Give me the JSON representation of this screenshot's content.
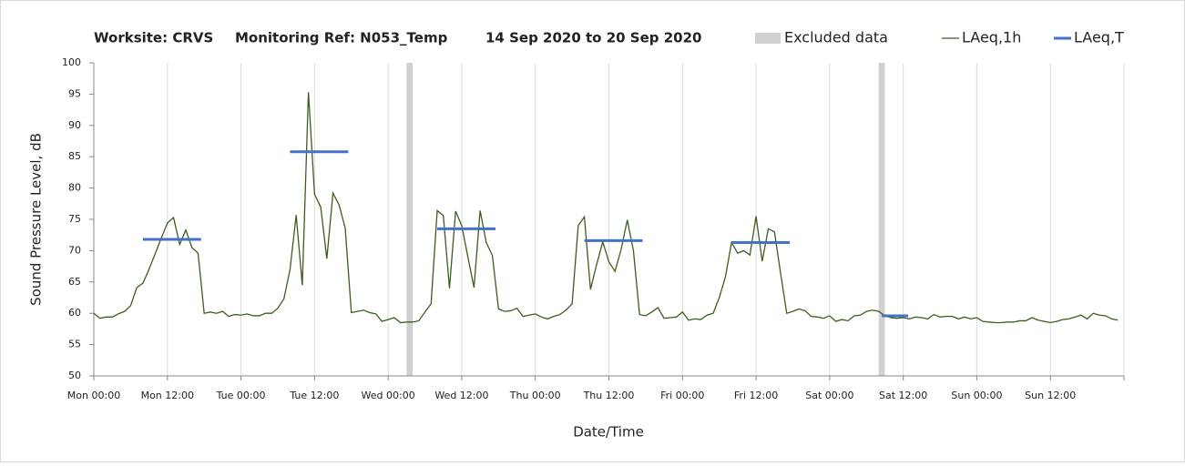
{
  "chart_data": {
    "type": "line",
    "title_parts": [
      "Worksite: CRVS",
      "Monitoring Ref: N053_Temp",
      "14 Sep 2020 to 20 Sep 2020"
    ],
    "y_label": "Sound Pressure Level, dB",
    "x_label": "Date/Time",
    "xlim": [
      0,
      168
    ],
    "xticks": [
      {
        "value": 0,
        "label": "Mon 00:00"
      },
      {
        "value": 12,
        "label": "Mon 12:00"
      },
      {
        "value": 24,
        "label": "Tue 00:00"
      },
      {
        "value": 36,
        "label": "Tue 12:00"
      },
      {
        "value": 48,
        "label": "Wed 00:00"
      },
      {
        "value": 60,
        "label": "Wed 12:00"
      },
      {
        "value": 72,
        "label": "Thu 00:00"
      },
      {
        "value": 84,
        "label": "Thu 12:00"
      },
      {
        "value": 96,
        "label": "Fri 00:00"
      },
      {
        "value": 108,
        "label": "Fri 12:00"
      },
      {
        "value": 120,
        "label": "Sat 00:00"
      },
      {
        "value": 132,
        "label": "Sat 12:00"
      },
      {
        "value": 144,
        "label": "Sun 00:00"
      },
      {
        "value": 156,
        "label": "Sun 12:00"
      },
      {
        "value": 168,
        "label": null
      }
    ],
    "ylim": [
      50,
      100
    ],
    "yticks": [
      50,
      55,
      60,
      65,
      70,
      75,
      80,
      85,
      90,
      95,
      100
    ],
    "grid": true,
    "excluded": {
      "name": "Excluded data",
      "color": "#d0d0d0",
      "ranges": [
        [
          51,
          52
        ],
        [
          128,
          129
        ]
      ]
    },
    "x": [
      0,
      1,
      2,
      3,
      4,
      5,
      6,
      7,
      8,
      9,
      10,
      11,
      12,
      13,
      14,
      15,
      16,
      17,
      18,
      19,
      20,
      21,
      22,
      23,
      24,
      25,
      26,
      27,
      28,
      29,
      30,
      31,
      32,
      33,
      34,
      35,
      36,
      37,
      38,
      39,
      40,
      41,
      42,
      43,
      44,
      45,
      46,
      47,
      48,
      49,
      50,
      51,
      52,
      53,
      54,
      55,
      56,
      57,
      58,
      59,
      60,
      61,
      62,
      63,
      64,
      65,
      66,
      67,
      68,
      69,
      70,
      71,
      72,
      73,
      74,
      75,
      76,
      77,
      78,
      79,
      80,
      81,
      82,
      83,
      84,
      85,
      86,
      87,
      88,
      89,
      90,
      91,
      92,
      93,
      94,
      95,
      96,
      97,
      98,
      99,
      100,
      101,
      102,
      103,
      104,
      105,
      106,
      107,
      108,
      109,
      110,
      111,
      112,
      113,
      114,
      115,
      116,
      117,
      118,
      119,
      120,
      121,
      122,
      123,
      124,
      125,
      126,
      127,
      128,
      129,
      130,
      131,
      132,
      133,
      134,
      135,
      136,
      137,
      138,
      139,
      140,
      141,
      142,
      143,
      144,
      145,
      146,
      147,
      148,
      149,
      150,
      151,
      152,
      153,
      154,
      155,
      156,
      157,
      158,
      159,
      160,
      161,
      162,
      163,
      164,
      165,
      166,
      167
    ],
    "series": [
      {
        "name": "LAeq,1h",
        "color": "#3b5e1f",
        "values": [
          60,
          59.2,
          59.4,
          59.4,
          59.9,
          60.3,
          61.2,
          64.1,
          64.8,
          67,
          69.5,
          72,
          74.4,
          75.3,
          71,
          73.3,
          70.5,
          69.6,
          60,
          60.2,
          60,
          60.3,
          59.5,
          59.8,
          59.7,
          59.9,
          59.6,
          59.6,
          60,
          60,
          60.8,
          62.3,
          67,
          75.7,
          64.5,
          95.3,
          79,
          77,
          68.7,
          79.2,
          77.3,
          73.6,
          60.1,
          60.3,
          60.5,
          60.1,
          59.9,
          58.7,
          59,
          59.3,
          58.5,
          58.6,
          58.6,
          58.8,
          60.2,
          61.5,
          76.4,
          75.6,
          64,
          76.3,
          74,
          69,
          64.1,
          76.4,
          71.3,
          69.2,
          60.7,
          60.3,
          60.4,
          60.8,
          59.5,
          59.7,
          59.9,
          59.4,
          59.1,
          59.5,
          59.8,
          60.5,
          61.5,
          74,
          75.4,
          63.8,
          67.8,
          71.4,
          68.2,
          66.7,
          70.2,
          74.9,
          70,
          59.8,
          59.6,
          60.2,
          60.9,
          59.2,
          59.3,
          59.4,
          60.2,
          58.9,
          59.1,
          59,
          59.7,
          60,
          62.5,
          65.8,
          71.3,
          69.6,
          70,
          69.3,
          75.5,
          68.3,
          73.5,
          73,
          66.4,
          60,
          60.3,
          60.7,
          60.4,
          59.5,
          59.4,
          59.2,
          59.6,
          58.7,
          59,
          58.8,
          59.6,
          59.7,
          60.3,
          60.5,
          60.3,
          59.6,
          59.3,
          59.2,
          59.3,
          59.1,
          59.4,
          59.3,
          59.1,
          59.8,
          59.4,
          59.5,
          59.5,
          59.1,
          59.4,
          59.1,
          59.3,
          58.7,
          58.6,
          58.5,
          58.5,
          58.6,
          58.6,
          58.8,
          58.8,
          59.3,
          58.9,
          58.7,
          58.5,
          58.7,
          59,
          59.1,
          59.4,
          59.7,
          59.1,
          60,
          59.7,
          59.6,
          59.1,
          58.9
        ]
      },
      {
        "name": "LAeq,T",
        "color": "#4472c4",
        "segments": [
          {
            "x": [
              8,
              17.5
            ],
            "value": 71.8
          },
          {
            "x": [
              32,
              41.5
            ],
            "value": 85.8
          },
          {
            "x": [
              56,
              65.5
            ],
            "value": 73.5
          },
          {
            "x": [
              80,
              89.5
            ],
            "value": 71.6
          },
          {
            "x": [
              104,
              113.5
            ],
            "value": 71.3
          },
          {
            "x": [
              128.5,
              132.8
            ],
            "value": 59.6
          }
        ]
      }
    ]
  }
}
